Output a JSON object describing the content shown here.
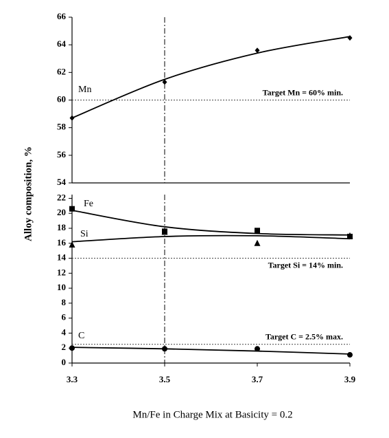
{
  "chart_data": [
    {
      "type": "line",
      "ylabel": "Alloy composition, %",
      "xlim": [
        3.3,
        3.9
      ],
      "ylim": [
        54,
        66
      ],
      "yticks": [
        54,
        56,
        58,
        60,
        62,
        64,
        66
      ],
      "vline": 3.5,
      "x": [
        3.3,
        3.5,
        3.7,
        3.9
      ],
      "series": [
        {
          "name": "Mn",
          "color": "#000000",
          "marker": "diamond",
          "values": [
            58.7,
            61.3,
            63.6,
            64.5
          ],
          "trend": [
            58.7,
            61.5,
            63.4,
            64.6
          ]
        }
      ],
      "reference_lines": [
        {
          "value": 60,
          "label": "Target Mn = 60% min.",
          "label_position": "above"
        }
      ]
    },
    {
      "type": "line",
      "xlabel": "Mn/Fe in Charge Mix at Basicity = 0.2",
      "xlim": [
        3.3,
        3.9
      ],
      "xticks": [
        3.3,
        3.5,
        3.7,
        3.9
      ],
      "ylim": [
        0,
        22.5
      ],
      "yticks": [
        0,
        2,
        4,
        6,
        8,
        10,
        12,
        14,
        16,
        18,
        20,
        22
      ],
      "vline": 3.5,
      "x": [
        3.3,
        3.5,
        3.7,
        3.9
      ],
      "series": [
        {
          "name": "Fe",
          "color": "#000000",
          "marker": "square",
          "values": [
            20.6,
            17.6,
            17.7,
            16.9
          ],
          "trend": [
            20.4,
            18.2,
            17.3,
            17.1
          ]
        },
        {
          "name": "Si",
          "color": "#000000",
          "marker": "triangle",
          "values": [
            15.8,
            17.5,
            16.0,
            17.0
          ],
          "trend": [
            16.2,
            16.9,
            17.0,
            16.6
          ]
        },
        {
          "name": "C",
          "color": "#000000",
          "marker": "circle",
          "values": [
            2.0,
            1.9,
            1.9,
            1.1
          ],
          "trend": [
            2.1,
            1.9,
            1.6,
            1.2
          ]
        }
      ],
      "reference_lines": [
        {
          "value": 14,
          "label": "Target Si = 14% min.",
          "label_position": "below"
        },
        {
          "value": 2.5,
          "label": "Target C = 2.5% max.",
          "label_position": "above"
        }
      ]
    }
  ]
}
